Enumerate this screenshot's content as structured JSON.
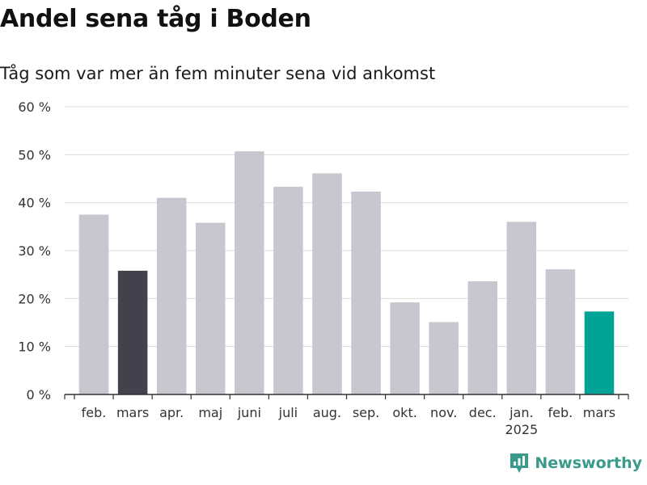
{
  "title": "Andel sena tåg i Boden",
  "subtitle": "Tåg som var mer än fem minuter sena vid ankomst",
  "brand": "Newsworthy",
  "colors": {
    "bar_default": "#c8c7d0",
    "bar_highlight_prev": "#42414e",
    "bar_highlight_current": "#00a396",
    "grid": "#dcdcdc",
    "axis": "#333333",
    "brand": "#3a9a8c"
  },
  "chart_data": {
    "type": "bar",
    "categories": [
      "feb.",
      "mars",
      "apr.",
      "maj",
      "juni",
      "juli",
      "aug.",
      "sep.",
      "okt.",
      "nov.",
      "dec.",
      "jan.",
      "feb.",
      "mars"
    ],
    "year_labels": [
      {
        "index": 11,
        "label": "2025"
      }
    ],
    "values": [
      37.5,
      25.8,
      41.0,
      35.8,
      50.7,
      43.3,
      46.1,
      42.3,
      19.2,
      15.1,
      23.6,
      36.0,
      26.1,
      17.3
    ],
    "highlight": {
      "1": "bar_highlight_prev",
      "13": "bar_highlight_current"
    },
    "y_ticks": [
      0,
      10,
      20,
      30,
      40,
      50,
      60
    ],
    "y_tick_suffix": " %",
    "ylim": [
      0,
      60
    ],
    "grid": true,
    "legend": "none"
  }
}
